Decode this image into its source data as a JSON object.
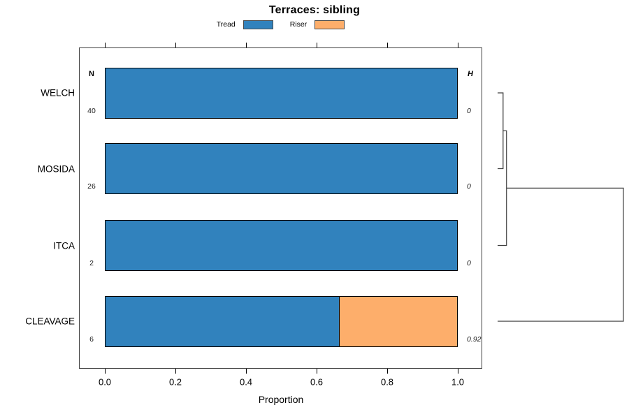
{
  "figure": {
    "title": "Terraces: sibling",
    "x_axis": {
      "label": "Proportion",
      "tick_labels": [
        "0.0",
        "0.2",
        "0.4",
        "0.6",
        "0.8",
        "1.0"
      ]
    },
    "columns": {
      "n_header": "N",
      "h_header": "H"
    },
    "legend": [
      {
        "label": "Tread",
        "color": "#3182BD"
      },
      {
        "label": "Riser",
        "color": "#FDAE6B"
      }
    ]
  },
  "chart_data": {
    "type": "bar",
    "orientation": "horizontal",
    "stacked": true,
    "title": "Terraces: sibling",
    "xlabel": "Proportion",
    "xlim": [
      0,
      1.08
    ],
    "xticks": [
      0,
      0.2,
      0.4,
      0.6,
      0.8,
      1.0
    ],
    "grid": false,
    "legend_position": "top",
    "categories": [
      "WELCH",
      "MOSIDA",
      "ITCA",
      "CLEAVAGE"
    ],
    "N": [
      40,
      26,
      2,
      6
    ],
    "H": [
      "0",
      "0",
      "0",
      "0.92"
    ],
    "series": [
      {
        "name": "Tread",
        "color": "#3182BD",
        "values": [
          1.0,
          1.0,
          1.0,
          0.667
        ]
      },
      {
        "name": "Riser",
        "color": "#FDAE6B",
        "values": [
          0.0,
          0.0,
          0.0,
          0.333
        ]
      }
    ],
    "dendrogram": {
      "side": "right",
      "root_height": 0.92,
      "merges": [
        {
          "a": "WELCH",
          "b": "MOSIDA",
          "height": 0.04
        },
        {
          "a": "merge:0",
          "b": "ITCA",
          "height": 0.065
        },
        {
          "a": "merge:1",
          "b": "CLEAVAGE",
          "height": 0.92
        }
      ]
    }
  }
}
